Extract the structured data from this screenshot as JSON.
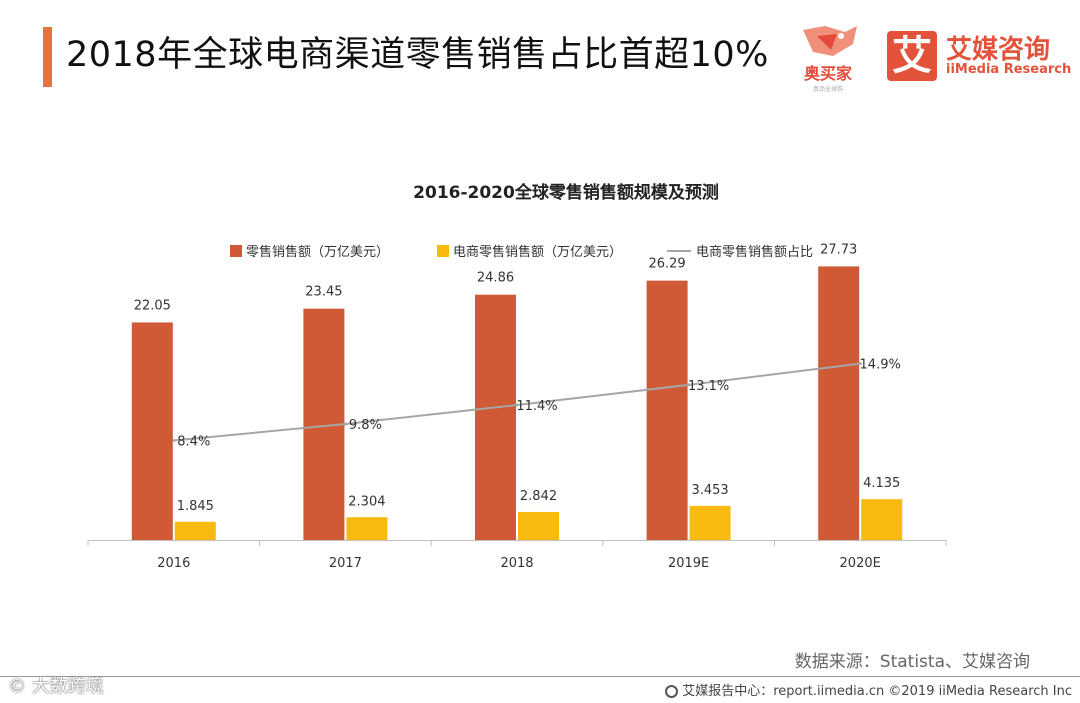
{
  "header": {
    "title": "2018年全球电商渠道零售销售占比首超10%",
    "logo1_name": "奥买家",
    "logo1_slogan": "真品全球购",
    "logo2_mark": "艾",
    "logo2_cn": "艾媒咨询",
    "logo2_en": "iiMedia Research"
  },
  "chart_data": {
    "type": "bar",
    "title": "2016-2020全球零售销售额规模及预测",
    "categories": [
      "2016",
      "2017",
      "2018",
      "2019E",
      "2020E"
    ],
    "series": [
      {
        "name": "零售销售额（万亿美元）",
        "type": "bar",
        "color": "#D05A35",
        "values": [
          22.05,
          23.45,
          24.86,
          26.29,
          27.73
        ],
        "labels": [
          "22.05",
          "23.45",
          "24.86",
          "26.29",
          "27.73"
        ]
      },
      {
        "name": "电商零售销售额（万亿美元）",
        "type": "bar",
        "color": "#F8BA10",
        "values": [
          1.845,
          2.304,
          2.842,
          3.453,
          4.135
        ],
        "labels": [
          "1.845",
          "2.304",
          "2.842",
          "3.453",
          "4.135"
        ]
      },
      {
        "name": "电商零售销售额占比",
        "type": "line",
        "color": "#A6A6A6",
        "values": [
          8.4,
          9.8,
          11.4,
          13.1,
          14.9
        ],
        "labels": [
          "8.4%",
          "9.8%",
          "11.4%",
          "13.1%",
          "14.9%"
        ]
      }
    ],
    "ylim": [
      0,
      30
    ],
    "line_ylim": [
      0,
      25
    ],
    "xlabel": "",
    "ylabel": "",
    "grid": false,
    "legend_position": "top-center"
  },
  "source": "数据来源：Statista、艾媒咨询",
  "footer": "艾媒报告中心：report.iimedia.cn  ©2019  iiMedia Research  Inc",
  "watermark": "© 大数跨境"
}
